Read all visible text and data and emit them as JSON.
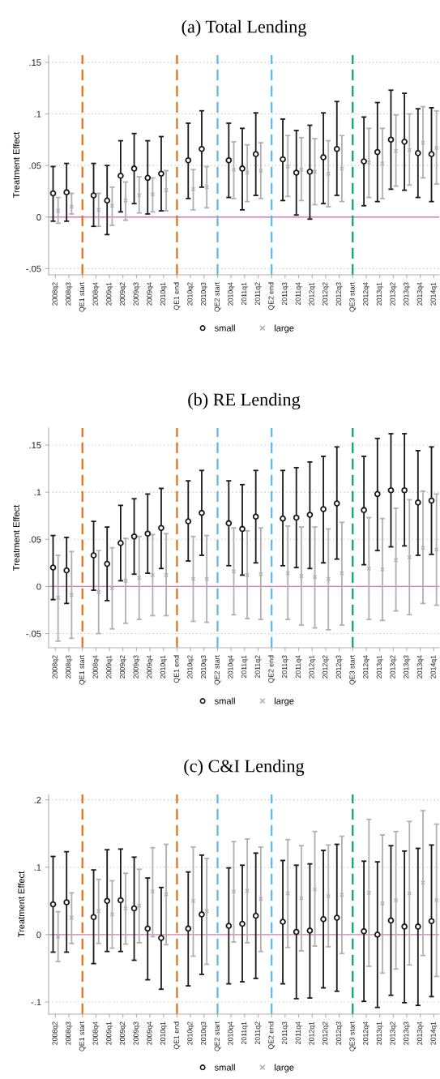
{
  "chart_data": [
    {
      "type": "scatter",
      "title": "(a) Total Lending",
      "ylabel": "Treatment Effect",
      "categories": [
        "2008q2",
        "2008q3",
        "QE1 start",
        "2008q4",
        "2009q1",
        "2009q2",
        "2009q3",
        "2009q4",
        "2010q1",
        "QE1 end",
        "2010q2",
        "2010q3",
        "QE2 start",
        "2010q4",
        "2011q1",
        "2011q2",
        "QE2 end",
        "2011q3",
        "2011q4",
        "2012q1",
        "2012q2",
        "2012q3",
        "QE3 start",
        "2012q4",
        "2013q1",
        "2013q2",
        "2013q3",
        "2013q4",
        "2014q1"
      ],
      "ylim": [
        -0.056,
        0.157
      ],
      "yticks": [
        {
          "value": -0.05,
          "label": "-.05"
        },
        0,
        {
          "value": 0.05,
          "label": ".05"
        },
        {
          "value": 0.1,
          "label": ".1"
        },
        {
          "value": 0.15,
          "label": ".15"
        }
      ],
      "grid": "y",
      "legend": "bottom",
      "ref_lines": [
        {
          "axis": "y",
          "value": 0,
          "color": "#d97cb8",
          "line_style": "solid"
        },
        {
          "axis": "x",
          "value": "QE1 start",
          "color": "#e0701a",
          "line_style": "dashed"
        },
        {
          "axis": "x",
          "value": "QE1 end",
          "color": "#e0701a",
          "line_style": "dashed"
        },
        {
          "axis": "x",
          "value": "QE2 start",
          "color": "#5cb8ec",
          "line_style": "dashed"
        },
        {
          "axis": "x",
          "value": "QE2 end",
          "color": "#5cb8ec",
          "line_style": "dashed"
        },
        {
          "axis": "x",
          "value": "QE3 start",
          "color": "#0f9e72",
          "line_style": "dashed"
        }
      ],
      "series": [
        {
          "name": "small",
          "color": "#1a1a1a",
          "marker": "circle",
          "values": [
            0.023,
            0.024,
            null,
            0.021,
            0.016,
            0.04,
            0.047,
            0.038,
            0.042,
            null,
            0.055,
            0.066,
            null,
            0.055,
            0.047,
            0.061,
            null,
            0.056,
            0.043,
            0.044,
            0.058,
            0.066,
            null,
            0.054,
            0.063,
            0.075,
            0.073,
            0.062,
            0.061
          ],
          "errors": [
            [
              -0.004,
              0.049
            ],
            [
              -0.004,
              0.052
            ],
            null,
            [
              -0.009,
              0.052
            ],
            [
              -0.017,
              0.05
            ],
            [
              0.005,
              0.074
            ],
            [
              0.013,
              0.081
            ],
            [
              0.003,
              0.074
            ],
            [
              0.006,
              0.078
            ],
            null,
            [
              0.018,
              0.091
            ],
            [
              0.029,
              0.103
            ],
            null,
            [
              0.019,
              0.091
            ],
            [
              0.007,
              0.086
            ],
            [
              0.021,
              0.101
            ],
            null,
            [
              0.016,
              0.095
            ],
            [
              0.002,
              0.084
            ],
            [
              -0.002,
              0.089
            ],
            [
              0.013,
              0.101
            ],
            [
              0.021,
              0.112
            ],
            null,
            [
              0.011,
              0.097
            ],
            [
              0.015,
              0.111
            ],
            [
              0.027,
              0.123
            ],
            [
              0.026,
              0.12
            ],
            [
              0.019,
              0.105
            ],
            [
              0.015,
              0.106
            ]
          ]
        },
        {
          "name": "large",
          "color": "#b0b0b0",
          "marker": "cross",
          "values": [
            0.006,
            0.01,
            null,
            0.007,
            0.011,
            0.016,
            0.021,
            0.022,
            0.026,
            null,
            0.027,
            0.029,
            null,
            0.046,
            0.043,
            0.045,
            null,
            0.049,
            0.046,
            0.044,
            0.042,
            0.047,
            null,
            0.053,
            0.052,
            0.064,
            0.065,
            0.072,
            0.067
          ],
          "errors": [
            [
              -0.006,
              0.019
            ],
            [
              0.003,
              0.023
            ],
            null,
            [
              -0.009,
              0.023
            ],
            [
              -0.008,
              0.029
            ],
            [
              -0.003,
              0.034
            ],
            [
              0.004,
              0.039
            ],
            [
              0.005,
              0.038
            ],
            [
              0.006,
              0.045
            ],
            null,
            [
              0.007,
              0.046
            ],
            [
              0.009,
              0.049
            ],
            null,
            [
              0.018,
              0.073
            ],
            [
              0.015,
              0.07
            ],
            [
              0.018,
              0.072
            ],
            null,
            [
              0.02,
              0.079
            ],
            [
              0.016,
              0.077
            ],
            [
              0.012,
              0.076
            ],
            [
              0.01,
              0.074
            ],
            [
              0.015,
              0.079
            ],
            null,
            [
              0.019,
              0.086
            ],
            [
              0.018,
              0.086
            ],
            [
              0.03,
              0.099
            ],
            [
              0.031,
              0.1
            ],
            [
              0.038,
              0.107
            ],
            [
              0.032,
              0.103
            ]
          ]
        }
      ]
    },
    {
      "type": "scatter",
      "title": "(b) RE Lending",
      "ylabel": "Treatment Effect",
      "categories": [
        "2008q2",
        "2008q3",
        "QE1 start",
        "2008q4",
        "2009q1",
        "2009q2",
        "2009q3",
        "2009q4",
        "2010q1",
        "QE1 end",
        "2010q2",
        "2010q3",
        "QE2 start",
        "2010q4",
        "2011q1",
        "2011q2",
        "QE2 end",
        "2011q3",
        "2011q4",
        "2012q1",
        "2012q2",
        "2012q3",
        "QE3 start",
        "2012q4",
        "2013q1",
        "2013q2",
        "2013q3",
        "2013q4",
        "2014q1"
      ],
      "ylim": [
        -0.065,
        0.168
      ],
      "yticks": [
        {
          "value": -0.05,
          "label": "-.05"
        },
        0,
        {
          "value": 0.05,
          "label": ".05"
        },
        {
          "value": 0.1,
          "label": ".1"
        },
        {
          "value": 0.15,
          "label": ".15"
        }
      ],
      "grid": "y",
      "legend": "bottom",
      "ref_lines": [
        {
          "axis": "y",
          "value": 0,
          "color": "#d97cb8",
          "line_style": "solid"
        },
        {
          "axis": "x",
          "value": "QE1 start",
          "color": "#e0701a",
          "line_style": "dashed"
        },
        {
          "axis": "x",
          "value": "QE1 end",
          "color": "#e0701a",
          "line_style": "dashed"
        },
        {
          "axis": "x",
          "value": "QE2 start",
          "color": "#5cb8ec",
          "line_style": "dashed"
        },
        {
          "axis": "x",
          "value": "QE2 end",
          "color": "#5cb8ec",
          "line_style": "dashed"
        },
        {
          "axis": "x",
          "value": "QE3 start",
          "color": "#0f9e72",
          "line_style": "dashed"
        }
      ],
      "series": [
        {
          "name": "small",
          "color": "#1a1a1a",
          "marker": "circle",
          "values": [
            0.02,
            0.017,
            null,
            0.033,
            0.024,
            0.046,
            0.053,
            0.056,
            0.062,
            null,
            0.069,
            0.078,
            null,
            0.067,
            0.061,
            0.074,
            null,
            0.072,
            0.073,
            0.076,
            0.082,
            0.088,
            null,
            0.081,
            0.098,
            0.102,
            0.102,
            0.089,
            0.091
          ],
          "errors": [
            [
              -0.014,
              0.054
            ],
            [
              -0.018,
              0.052
            ],
            null,
            [
              -0.004,
              0.069
            ],
            [
              -0.015,
              0.063
            ],
            [
              0.006,
              0.086
            ],
            [
              0.013,
              0.093
            ],
            [
              0.014,
              0.098
            ],
            [
              0.019,
              0.104
            ],
            null,
            [
              0.027,
              0.112
            ],
            [
              0.033,
              0.123
            ],
            null,
            [
              0.022,
              0.112
            ],
            [
              0.012,
              0.108
            ],
            [
              0.025,
              0.123
            ],
            null,
            [
              0.022,
              0.123
            ],
            [
              0.02,
              0.126
            ],
            [
              0.019,
              0.132
            ],
            [
              0.025,
              0.138
            ],
            [
              0.029,
              0.148
            ],
            null,
            [
              0.023,
              0.138
            ],
            [
              0.038,
              0.157
            ],
            [
              0.042,
              0.162
            ],
            [
              0.043,
              0.162
            ],
            [
              0.033,
              0.144
            ],
            [
              0.034,
              0.148
            ]
          ]
        },
        {
          "name": "large",
          "color": "#b0b0b0",
          "marker": "cross",
          "values": [
            -0.012,
            -0.009,
            null,
            -0.006,
            -0.002,
            0.006,
            0.009,
            0.012,
            0.012,
            null,
            0.008,
            0.008,
            null,
            0.016,
            0.012,
            0.013,
            null,
            0.014,
            0.011,
            0.01,
            0.008,
            0.014,
            null,
            0.019,
            0.018,
            0.028,
            0.031,
            0.041,
            0.039
          ],
          "errors": [
            [
              -0.058,
              0.033
            ],
            [
              -0.055,
              0.037
            ],
            null,
            [
              -0.05,
              0.038
            ],
            [
              -0.045,
              0.041
            ],
            [
              -0.039,
              0.051
            ],
            [
              -0.035,
              0.053
            ],
            [
              -0.031,
              0.055
            ],
            [
              -0.031,
              0.056
            ],
            null,
            [
              -0.037,
              0.053
            ],
            [
              -0.038,
              0.054
            ],
            null,
            [
              -0.03,
              0.062
            ],
            [
              -0.034,
              0.059
            ],
            [
              -0.035,
              0.062
            ],
            null,
            [
              -0.035,
              0.064
            ],
            [
              -0.041,
              0.063
            ],
            [
              -0.044,
              0.063
            ],
            [
              -0.046,
              0.061
            ],
            [
              -0.041,
              0.068
            ],
            null,
            [
              -0.035,
              0.073
            ],
            [
              -0.036,
              0.072
            ],
            [
              -0.026,
              0.083
            ],
            [
              -0.03,
              0.092
            ],
            [
              -0.018,
              0.101
            ],
            [
              -0.02,
              0.098
            ]
          ]
        }
      ]
    },
    {
      "type": "scatter",
      "title": "(c) C&I Lending",
      "ylabel": "Treatment Effect",
      "categories": [
        "2008q2",
        "2008q3",
        "QE1 start",
        "2008q4",
        "2009q1",
        "2009q2",
        "2009q3",
        "2009q4",
        "2010q1",
        "QE1 end",
        "2010q2",
        "2010q3",
        "QE2 start",
        "2010q4",
        "2011q1",
        "2011q2",
        "QE2 end",
        "2011q3",
        "2011q4",
        "2012q1",
        "2012q2",
        "2012q3",
        "QE3 start",
        "2012q4",
        "2013q1",
        "2013q2",
        "2013q3",
        "2013q4",
        "2014q1"
      ],
      "ylim": [
        -0.118,
        0.208
      ],
      "yticks": [
        {
          "value": -0.1,
          "label": "-.1"
        },
        0,
        {
          "value": 0.1,
          "label": ".1"
        },
        {
          "value": 0.2,
          "label": ".2"
        }
      ],
      "grid": "y",
      "legend": "bottom",
      "ref_lines": [
        {
          "axis": "y",
          "value": 0,
          "color": "#d97cb8",
          "line_style": "solid"
        },
        {
          "axis": "x",
          "value": "QE1 start",
          "color": "#e0701a",
          "line_style": "dashed"
        },
        {
          "axis": "x",
          "value": "QE1 end",
          "color": "#e0701a",
          "line_style": "dashed"
        },
        {
          "axis": "x",
          "value": "QE2 start",
          "color": "#5cb8ec",
          "line_style": "dashed"
        },
        {
          "axis": "x",
          "value": "QE2 end",
          "color": "#5cb8ec",
          "line_style": "dashed"
        },
        {
          "axis": "x",
          "value": "QE3 start",
          "color": "#0f9e72",
          "line_style": "dashed"
        }
      ],
      "series": [
        {
          "name": "small",
          "color": "#1a1a1a",
          "marker": "circle",
          "values": [
            0.045,
            0.048,
            null,
            0.026,
            0.05,
            0.051,
            0.039,
            0.009,
            -0.005,
            null,
            0.009,
            0.03,
            null,
            0.013,
            0.016,
            0.028,
            null,
            0.019,
            0.004,
            0.006,
            0.023,
            0.025,
            null,
            0.005,
            0.0,
            0.021,
            0.012,
            0.012,
            0.02
          ],
          "errors": [
            [
              -0.026,
              0.116
            ],
            [
              -0.026,
              0.123
            ],
            null,
            [
              -0.043,
              0.096
            ],
            [
              -0.025,
              0.126
            ],
            [
              -0.025,
              0.127
            ],
            [
              -0.038,
              0.115
            ],
            [
              -0.067,
              0.084
            ],
            [
              -0.081,
              0.07
            ],
            null,
            [
              -0.076,
              0.093
            ],
            [
              -0.059,
              0.118
            ],
            null,
            [
              -0.073,
              0.099
            ],
            [
              -0.07,
              0.103
            ],
            [
              -0.065,
              0.121
            ],
            null,
            [
              -0.073,
              0.11
            ],
            [
              -0.095,
              0.103
            ],
            [
              -0.094,
              0.105
            ],
            [
              -0.079,
              0.125
            ],
            [
              -0.084,
              0.134
            ],
            null,
            [
              -0.099,
              0.109
            ],
            [
              -0.108,
              0.108
            ],
            [
              -0.09,
              0.132
            ],
            [
              -0.101,
              0.124
            ],
            [
              -0.105,
              0.128
            ],
            [
              -0.092,
              0.133
            ]
          ]
        },
        {
          "name": "large",
          "color": "#b0b0b0",
          "marker": "cross",
          "values": [
            -0.003,
            0.025,
            null,
            0.035,
            0.03,
            0.039,
            0.043,
            0.064,
            0.06,
            null,
            0.05,
            0.035,
            null,
            0.064,
            0.065,
            0.053,
            null,
            0.061,
            0.054,
            0.067,
            0.057,
            0.059,
            null,
            0.062,
            0.046,
            0.051,
            0.061,
            0.077,
            0.051
          ],
          "errors": [
            [
              -0.04,
              0.034
            ],
            [
              -0.013,
              0.062
            ],
            null,
            [
              -0.013,
              0.082
            ],
            [
              -0.02,
              0.08
            ],
            [
              -0.014,
              0.091
            ],
            [
              -0.012,
              0.097
            ],
            [
              -0.003,
              0.129
            ],
            [
              -0.015,
              0.134
            ],
            null,
            [
              -0.032,
              0.13
            ],
            [
              -0.044,
              0.113
            ],
            null,
            [
              -0.011,
              0.138
            ],
            [
              -0.012,
              0.142
            ],
            [
              -0.025,
              0.13
            ],
            null,
            [
              -0.019,
              0.141
            ],
            [
              -0.024,
              0.132
            ],
            [
              -0.017,
              0.153
            ],
            [
              -0.018,
              0.133
            ],
            [
              -0.028,
              0.146
            ],
            null,
            [
              -0.047,
              0.171
            ],
            [
              -0.057,
              0.148
            ],
            [
              -0.051,
              0.153
            ],
            [
              -0.045,
              0.168
            ],
            [
              -0.031,
              0.184
            ],
            [
              -0.062,
              0.164
            ]
          ]
        }
      ]
    }
  ]
}
